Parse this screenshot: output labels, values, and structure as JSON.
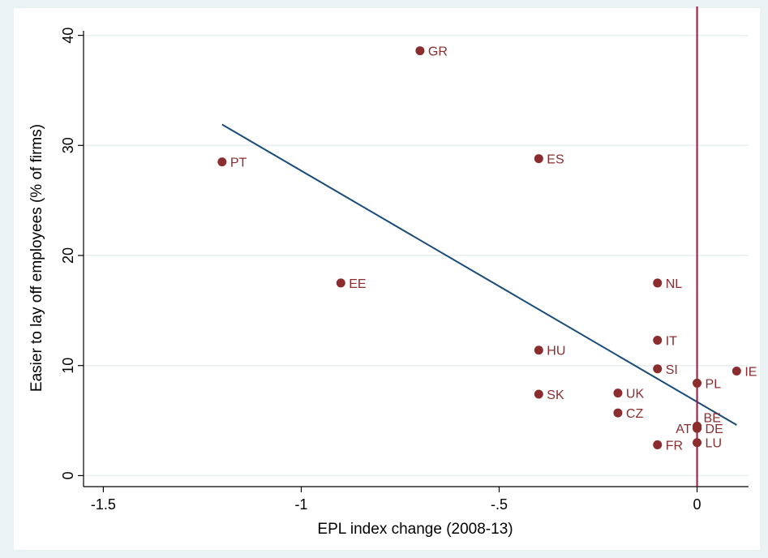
{
  "chart_data": {
    "type": "scatter",
    "title": "",
    "xlabel": "EPL index change (2008-13)",
    "ylabel": "Easier to lay off employees (%  of firms)",
    "xlim": [
      -1.55,
      0.13
    ],
    "ylim": [
      -1,
      41
    ],
    "x_ticks": [
      -1.5,
      -1,
      -0.5,
      0
    ],
    "x_tick_labels": [
      "-1.5",
      "-1",
      "-.5",
      "0"
    ],
    "y_ticks": [
      0,
      10,
      20,
      30,
      40
    ],
    "y_tick_labels": [
      "0",
      "10",
      "20",
      "30",
      "40"
    ],
    "grid": "horizontal",
    "colors": {
      "points": "#8b2c2f",
      "fit": "#1a4c7a",
      "zero_line": "#a0143c",
      "plot_bg": "#ffffff",
      "page_bg": "#eaf2f3",
      "grid": "#e6eeee"
    },
    "points": [
      {
        "label": "GR",
        "x": -0.7,
        "y": 38.6,
        "pos": "right"
      },
      {
        "label": "PT",
        "x": -1.2,
        "y": 28.5,
        "pos": "right"
      },
      {
        "label": "ES",
        "x": -0.4,
        "y": 28.8,
        "pos": "right"
      },
      {
        "label": "EE",
        "x": -0.9,
        "y": 17.5,
        "pos": "right"
      },
      {
        "label": "NL",
        "x": -0.1,
        "y": 17.5,
        "pos": "right"
      },
      {
        "label": "IT",
        "x": -0.1,
        "y": 12.3,
        "pos": "right"
      },
      {
        "label": "HU",
        "x": -0.4,
        "y": 11.4,
        "pos": "right"
      },
      {
        "label": "SI",
        "x": -0.1,
        "y": 9.7,
        "pos": "right"
      },
      {
        "label": "IE",
        "x": 0.1,
        "y": 9.5,
        "pos": "right"
      },
      {
        "label": "PL",
        "x": 0.0,
        "y": 8.4,
        "pos": "right"
      },
      {
        "label": "SK",
        "x": -0.4,
        "y": 7.4,
        "pos": "right"
      },
      {
        "label": "UK",
        "x": -0.2,
        "y": 7.5,
        "pos": "right"
      },
      {
        "label": "CZ",
        "x": -0.2,
        "y": 5.7,
        "pos": "right"
      },
      {
        "label": "BE",
        "x": 0.0,
        "y": 4.5,
        "pos": "upper-right"
      },
      {
        "label": "AT",
        "x": 0.0,
        "y": 4.3,
        "pos": "left"
      },
      {
        "label": "DE",
        "x": 0.0,
        "y": 4.3,
        "pos": "right"
      },
      {
        "label": "LU",
        "x": 0.0,
        "y": 3.0,
        "pos": "right"
      },
      {
        "label": "FR",
        "x": -0.1,
        "y": 2.8,
        "pos": "right"
      }
    ],
    "fit_line": {
      "x": [
        -1.2,
        0.1
      ],
      "y": [
        31.9,
        4.6
      ]
    },
    "reference_line_x": 0
  }
}
